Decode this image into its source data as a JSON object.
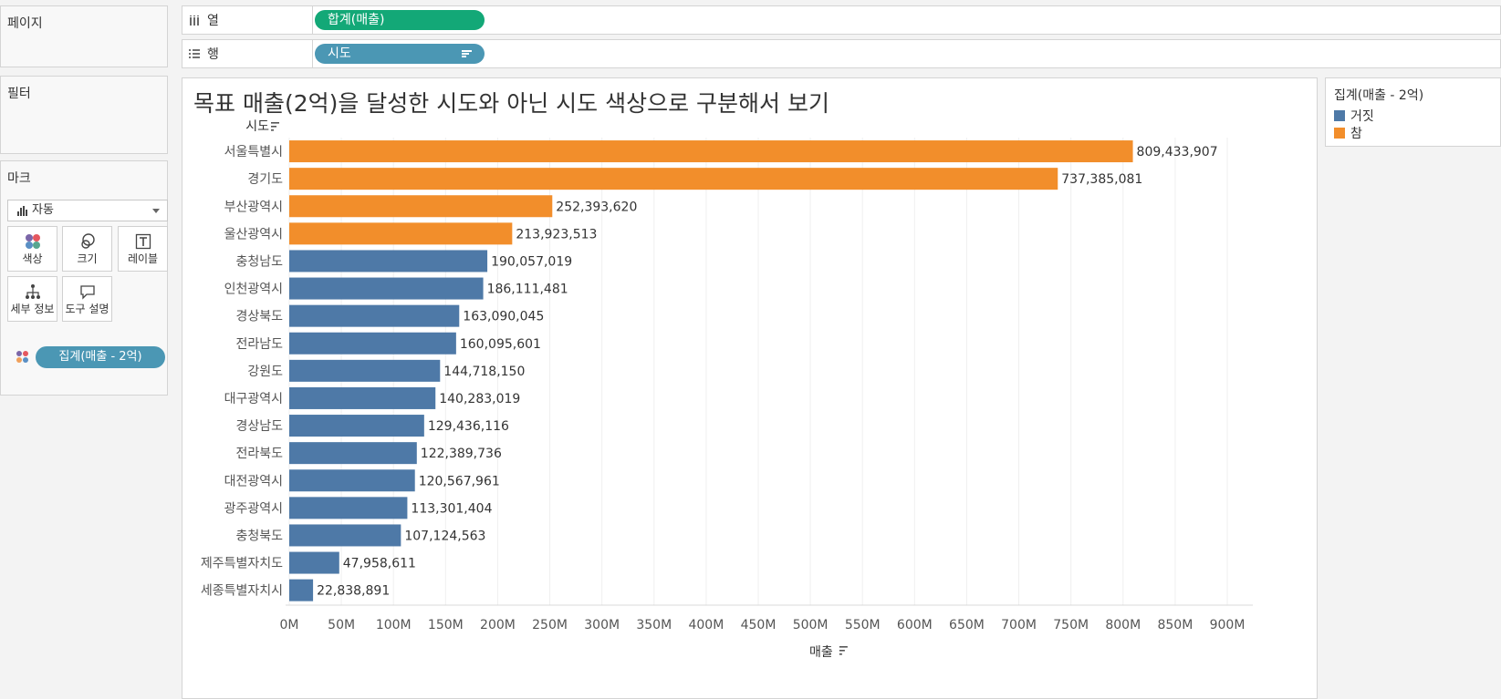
{
  "panels": {
    "pages": "페이지",
    "filters": "필터",
    "marks": "마크"
  },
  "shelves": {
    "columns": {
      "label": "열",
      "pill": "합계(매출)"
    },
    "rows": {
      "label": "행",
      "pill": "시도"
    }
  },
  "marks_card": {
    "type": "자동",
    "buttons": {
      "color": "색상",
      "size": "크기",
      "label": "레이블",
      "detail": "세부 정보",
      "tooltip": "도구 설명"
    },
    "field": "집계(매출 - 2억)"
  },
  "legend": {
    "title": "집계(매출 - 2억)",
    "items": [
      {
        "label": "거짓",
        "color": "#4e79a7"
      },
      {
        "label": "참",
        "color": "#f28e2b"
      }
    ]
  },
  "viz_title": "목표 매출(2억)을 달성한 시도와 아닌 시도 색상으로 구분해서 보기",
  "chart_data": {
    "type": "bar",
    "orientation": "horizontal",
    "ylabel": "시도",
    "xlabel": "매출",
    "xlim": [
      0,
      900000000
    ],
    "x_ticks": [
      "0M",
      "50M",
      "100M",
      "150M",
      "200M",
      "250M",
      "300M",
      "350M",
      "400M",
      "450M",
      "500M",
      "550M",
      "600M",
      "650M",
      "700M",
      "750M",
      "800M",
      "850M",
      "900M"
    ],
    "categories": [
      "서울특별시",
      "경기도",
      "부산광역시",
      "울산광역시",
      "충청남도",
      "인천광역시",
      "경상북도",
      "전라남도",
      "강원도",
      "대구광역시",
      "경상남도",
      "전라북도",
      "대전광역시",
      "광주광역시",
      "충청북도",
      "제주특별자치도",
      "세종특별자치시"
    ],
    "values": [
      809433907,
      737385081,
      252393620,
      213923513,
      190057019,
      186111481,
      163090045,
      160095601,
      144718150,
      140283019,
      129436116,
      122389736,
      120567961,
      113301404,
      107124563,
      47958611,
      22838891
    ],
    "labels": [
      "809,433,907",
      "737,385,081",
      "252,393,620",
      "213,923,513",
      "190,057,019",
      "186,111,481",
      "163,090,045",
      "160,095,601",
      "144,718,150",
      "140,283,019",
      "129,436,116",
      "122,389,736",
      "120,567,961",
      "113,301,404",
      "107,124,563",
      "47,958,611",
      "22,838,891"
    ],
    "color_rule": "참 if value >= 200000000 else 거짓",
    "colors": {
      "참": "#f28e2b",
      "거짓": "#4e79a7"
    },
    "grid": true
  }
}
